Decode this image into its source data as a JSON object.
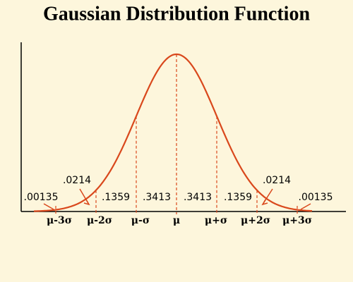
{
  "title": "Gaussian Distribution Function",
  "axis_labels": [
    "μ-3σ",
    "μ-2σ",
    "μ-σ",
    "μ",
    "μ+σ",
    "μ+2σ",
    "μ+3σ"
  ],
  "region_labels": [
    ".00135",
    ".0214",
    ".1359",
    ".3413",
    ".3413",
    ".1359",
    ".0214",
    ".00135"
  ]
}
